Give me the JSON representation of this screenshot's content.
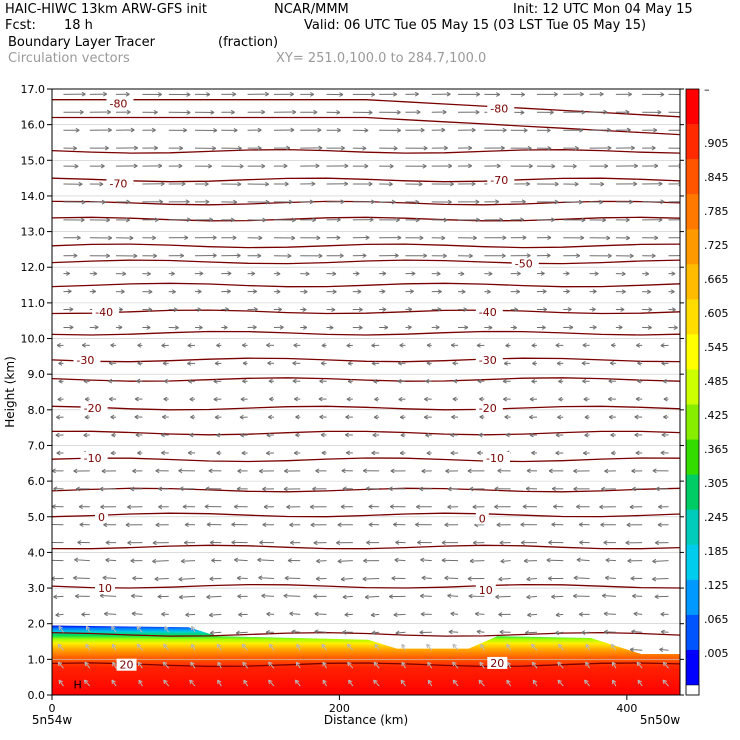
{
  "header": {
    "model": "HAIC-HIWC 13km ARW-GFS init",
    "org": "NCAR/MMM",
    "init": "Init: 12 UTC Mon 04 May 15",
    "fcst_label": "Fcst:",
    "fcst_value": "18 h",
    "valid": "Valid: 06 UTC Tue 05 May 15 (03 LST Tue 05 May 15)",
    "field1": "Boundary Layer Tracer",
    "field1_units": "(fraction)",
    "field2": "Circulation vectors",
    "xy": "XY= 251.0,100.0 to 284.7,100.0"
  },
  "chart_data": {
    "type": "heatmap",
    "title": "",
    "xlabel": "Distance (km)",
    "ylabel": "Height (km)",
    "xlim": [
      0,
      437
    ],
    "ylim": [
      0,
      17
    ],
    "x_ticks": [
      0,
      200,
      400
    ],
    "y_ticks": [
      "0.0",
      "1.0",
      "2.0",
      "3.0",
      "4.0",
      "5.0",
      "6.0",
      "7.0",
      "8.0",
      "9.0",
      "10.0",
      "11.0",
      "12.0",
      "13.0",
      "14.0",
      "15.0",
      "16.0",
      "17.0"
    ],
    "x_endpoint_labels": [
      "5n54w",
      "5n50w"
    ],
    "colorbar_labels": [
      "–",
      ".905",
      ".845",
      ".785",
      ".725",
      ".665",
      ".605",
      ".545",
      ".485",
      ".425",
      ".365",
      ".305",
      ".245",
      ".185",
      ".125",
      ".065",
      ".005"
    ],
    "colorbar_colors": [
      "#ff0000",
      "#ff2a00",
      "#ff5500",
      "#ff7800",
      "#ff9900",
      "#ffbb00",
      "#ffdd00",
      "#ffff00",
      "#ccff00",
      "#88ee00",
      "#33dd00",
      "#00cc66",
      "#00ccbb",
      "#00ccee",
      "#0099ff",
      "#0055ff",
      "#0000ff"
    ],
    "tracer_top_km": [
      {
        "x": 0,
        "h": 1.95
      },
      {
        "x": 95,
        "h": 1.9
      },
      {
        "x": 115,
        "h": 1.65
      },
      {
        "x": 220,
        "h": 1.55
      },
      {
        "x": 240,
        "h": 1.3
      },
      {
        "x": 290,
        "h": 1.3
      },
      {
        "x": 310,
        "h": 1.65
      },
      {
        "x": 375,
        "h": 1.6
      },
      {
        "x": 410,
        "h": 1.15
      },
      {
        "x": 437,
        "h": 1.15
      }
    ],
    "contour_labels": [
      {
        "text": "-80",
        "x": 40,
        "y": 16.6
      },
      {
        "text": "-80",
        "x": 305,
        "y": 16.45
      },
      {
        "text": "-70",
        "x": 40,
        "y": 14.35
      },
      {
        "text": "-70",
        "x": 305,
        "y": 14.45
      },
      {
        "text": "-50",
        "x": 322,
        "y": 12.1
      },
      {
        "text": "-40",
        "x": 30,
        "y": 10.75
      },
      {
        "text": "-40",
        "x": 297,
        "y": 10.75
      },
      {
        "text": "-30",
        "x": 17,
        "y": 9.4
      },
      {
        "text": "-30",
        "x": 297,
        "y": 9.4
      },
      {
        "text": "-20",
        "x": 22,
        "y": 8.05
      },
      {
        "text": "-20",
        "x": 297,
        "y": 8.05
      },
      {
        "text": "-10",
        "x": 22,
        "y": 6.65
      },
      {
        "text": "-10",
        "x": 302,
        "y": 6.65
      },
      {
        "text": "0",
        "x": 32,
        "y": 5.0
      },
      {
        "text": "0",
        "x": 297,
        "y": 4.95
      },
      {
        "text": "10",
        "x": 32,
        "y": 3.0
      },
      {
        "text": "10",
        "x": 297,
        "y": 2.95
      },
      {
        "text": "20",
        "x": 47,
        "y": 0.85
      },
      {
        "text": "20",
        "x": 305,
        "y": 0.9
      }
    ],
    "isotherm_heights_km": [
      0.85,
      1.7,
      3.05,
      4.15,
      5.05,
      5.75,
      6.6,
      7.35,
      8.05,
      8.85,
      9.4,
      10.15,
      10.75,
      11.5,
      12.15,
      12.6,
      13.35,
      13.8,
      14.45,
      15.25,
      16.2,
      16.7
    ],
    "high_marker": {
      "text": "H",
      "x": 15,
      "y": 0.3
    },
    "vectors": {
      "nx": 24,
      "ny": 34
    }
  }
}
